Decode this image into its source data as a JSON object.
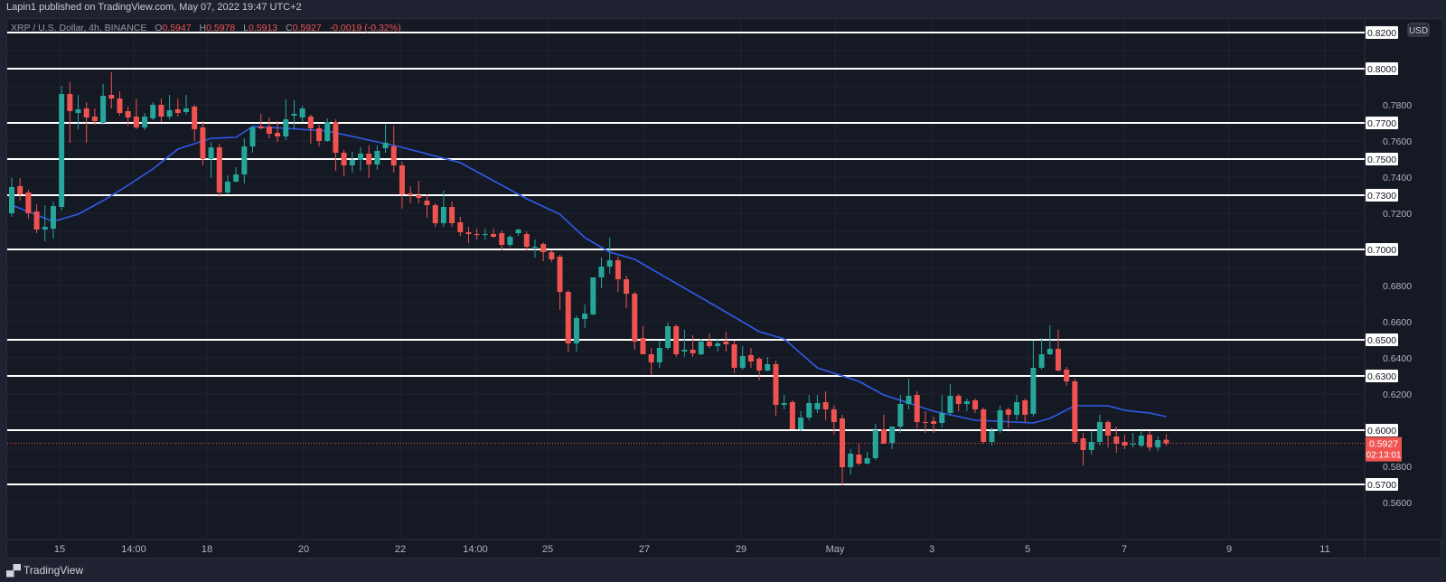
{
  "publisher_line": "Lapin1 published on TradingView.com, May 07, 2022 19:47 UTC+2",
  "legend": {
    "symbol": "XRP / U.S. Dollar, 4h, BINANCE",
    "open_label": "O",
    "open": "0.5947",
    "high_label": "H",
    "high": "0.5978",
    "low_label": "L",
    "low": "0.5913",
    "close_label": "C",
    "close": "0.5927",
    "change": "-0.0019 (-0.32%)"
  },
  "currency_badge": "USD",
  "footer_logo": "TradingView",
  "colors": {
    "up": "#26a69a",
    "down": "#ef5350",
    "ma": "#2f5bea",
    "level_line": "#ffffff",
    "last_price": "#f05350"
  },
  "chart_data": {
    "type": "candlestick",
    "timeframe": "4h",
    "ylim": [
      0.549,
      0.828
    ],
    "x_tick_labels": [
      "15",
      "14:00",
      "18",
      "20",
      "22",
      "14:00",
      "25",
      "27",
      "29",
      "May",
      "3",
      "5",
      "7",
      "9",
      "11"
    ],
    "y_tick_labels": [
      "0.7800",
      "0.7600",
      "0.7400",
      "0.7200",
      "0.6800",
      "0.6600",
      "0.6400",
      "0.6200",
      "0.5800",
      "0.5600"
    ],
    "horizontal_levels": [
      "0.8200",
      "0.8000",
      "0.7700",
      "0.7500",
      "0.7300",
      "0.7000",
      "0.6500",
      "0.6300",
      "0.6000",
      "0.5700"
    ],
    "last_price": {
      "value": "0.5927",
      "countdown": "02:13:01"
    },
    "candles_ohlc": [
      [
        0.72,
        0.7395,
        0.718,
        0.7345
      ],
      [
        0.735,
        0.7395,
        0.727,
        0.7305
      ],
      [
        0.7315,
        0.733,
        0.717,
        0.72
      ],
      [
        0.721,
        0.725,
        0.709,
        0.711
      ],
      [
        0.711,
        0.7245,
        0.7045,
        0.7125
      ],
      [
        0.7115,
        0.7265,
        0.706,
        0.724
      ],
      [
        0.7235,
        0.7905,
        0.7215,
        0.786
      ],
      [
        0.786,
        0.7925,
        0.759,
        0.7765
      ],
      [
        0.7755,
        0.7855,
        0.7665,
        0.7775
      ],
      [
        0.778,
        0.7815,
        0.759,
        0.773
      ],
      [
        0.7735,
        0.778,
        0.769,
        0.771
      ],
      [
        0.77,
        0.7915,
        0.769,
        0.785
      ],
      [
        0.7855,
        0.798,
        0.778,
        0.7835
      ],
      [
        0.7835,
        0.7875,
        0.774,
        0.7755
      ],
      [
        0.7765,
        0.779,
        0.7685,
        0.773
      ],
      [
        0.7735,
        0.7835,
        0.7665,
        0.7675
      ],
      [
        0.7675,
        0.7755,
        0.766,
        0.7735
      ],
      [
        0.7725,
        0.7815,
        0.7715,
        0.78
      ],
      [
        0.78,
        0.7835,
        0.7705,
        0.7735
      ],
      [
        0.7735,
        0.7855,
        0.772,
        0.777
      ],
      [
        0.7775,
        0.7835,
        0.7735,
        0.7755
      ],
      [
        0.776,
        0.7855,
        0.7745,
        0.778
      ],
      [
        0.779,
        0.78,
        0.76,
        0.7665
      ],
      [
        0.7675,
        0.771,
        0.7465,
        0.75
      ],
      [
        0.75,
        0.7595,
        0.7395,
        0.7565
      ],
      [
        0.7565,
        0.7585,
        0.729,
        0.7315
      ],
      [
        0.7315,
        0.741,
        0.7305,
        0.7375
      ],
      [
        0.7375,
        0.7455,
        0.737,
        0.7415
      ],
      [
        0.7415,
        0.7615,
        0.7365,
        0.757
      ],
      [
        0.757,
        0.7685,
        0.7535,
        0.7675
      ],
      [
        0.768,
        0.775,
        0.7665,
        0.767
      ],
      [
        0.768,
        0.773,
        0.7615,
        0.764
      ],
      [
        0.7645,
        0.771,
        0.7595,
        0.7625
      ],
      [
        0.7625,
        0.783,
        0.7605,
        0.772
      ],
      [
        0.774,
        0.7825,
        0.7665,
        0.775
      ],
      [
        0.773,
        0.7795,
        0.7705,
        0.778
      ],
      [
        0.7735,
        0.7745,
        0.7585,
        0.767
      ],
      [
        0.767,
        0.769,
        0.757,
        0.76
      ],
      [
        0.76,
        0.7725,
        0.7595,
        0.7705
      ],
      [
        0.7705,
        0.772,
        0.7435,
        0.7535
      ],
      [
        0.7535,
        0.755,
        0.7405,
        0.7465
      ],
      [
        0.7465,
        0.754,
        0.7425,
        0.7495
      ],
      [
        0.7495,
        0.7565,
        0.7435,
        0.753
      ],
      [
        0.753,
        0.7575,
        0.7395,
        0.747
      ],
      [
        0.747,
        0.7575,
        0.744,
        0.7545
      ],
      [
        0.756,
        0.769,
        0.7535,
        0.759
      ],
      [
        0.757,
        0.7685,
        0.7425,
        0.7465
      ],
      [
        0.7465,
        0.7485,
        0.7225,
        0.7305
      ],
      [
        0.731,
        0.735,
        0.7255,
        0.73
      ],
      [
        0.73,
        0.738,
        0.7255,
        0.7285
      ],
      [
        0.727,
        0.7305,
        0.7175,
        0.7245
      ],
      [
        0.7245,
        0.7255,
        0.7125,
        0.7145
      ],
      [
        0.7145,
        0.7325,
        0.7125,
        0.7235
      ],
      [
        0.7235,
        0.7265,
        0.7125,
        0.7145
      ],
      [
        0.715,
        0.718,
        0.7075,
        0.7095
      ],
      [
        0.7095,
        0.7125,
        0.7035,
        0.7085
      ],
      [
        0.7085,
        0.7115,
        0.7055,
        0.708
      ],
      [
        0.708,
        0.7115,
        0.7055,
        0.7085
      ],
      [
        0.7085,
        0.7115,
        0.7065,
        0.707
      ],
      [
        0.709,
        0.7105,
        0.6995,
        0.7025
      ],
      [
        0.7025,
        0.708,
        0.7015,
        0.707
      ],
      [
        0.709,
        0.7115,
        0.7075,
        0.711
      ],
      [
        0.7085,
        0.71,
        0.6995,
        0.7015
      ],
      [
        0.7015,
        0.7055,
        0.6955,
        0.7015
      ],
      [
        0.703,
        0.704,
        0.6935,
        0.6985
      ],
      [
        0.6985,
        0.6995,
        0.693,
        0.6945
      ],
      [
        0.696,
        0.697,
        0.6665,
        0.6765
      ],
      [
        0.6765,
        0.6775,
        0.6435,
        0.648
      ],
      [
        0.648,
        0.6635,
        0.6435,
        0.662
      ],
      [
        0.6615,
        0.6695,
        0.6565,
        0.6645
      ],
      [
        0.664,
        0.6845,
        0.6635,
        0.6845
      ],
      [
        0.6845,
        0.6955,
        0.6785,
        0.6905
      ],
      [
        0.6905,
        0.7065,
        0.6865,
        0.694
      ],
      [
        0.694,
        0.696,
        0.6765,
        0.6835
      ],
      [
        0.6835,
        0.6855,
        0.6675,
        0.6755
      ],
      [
        0.6755,
        0.6765,
        0.6445,
        0.649
      ],
      [
        0.651,
        0.6575,
        0.6425,
        0.642
      ],
      [
        0.642,
        0.6455,
        0.6305,
        0.6375
      ],
      [
        0.6375,
        0.6495,
        0.6345,
        0.6455
      ],
      [
        0.6455,
        0.6595,
        0.6445,
        0.6575
      ],
      [
        0.6575,
        0.6585,
        0.6405,
        0.642
      ],
      [
        0.6435,
        0.6555,
        0.6405,
        0.6445
      ],
      [
        0.6445,
        0.6525,
        0.6405,
        0.6425
      ],
      [
        0.642,
        0.6505,
        0.6415,
        0.649
      ],
      [
        0.649,
        0.6535,
        0.6455,
        0.6465
      ],
      [
        0.6465,
        0.6505,
        0.6435,
        0.648
      ],
      [
        0.649,
        0.6545,
        0.6435,
        0.6475
      ],
      [
        0.6475,
        0.6495,
        0.6315,
        0.6345
      ],
      [
        0.6345,
        0.6465,
        0.6335,
        0.641
      ],
      [
        0.6415,
        0.6455,
        0.6345,
        0.638
      ],
      [
        0.6395,
        0.6405,
        0.6275,
        0.633
      ],
      [
        0.633,
        0.6405,
        0.6325,
        0.6365
      ],
      [
        0.6365,
        0.6385,
        0.608,
        0.614
      ],
      [
        0.614,
        0.6195,
        0.6115,
        0.615
      ],
      [
        0.6155,
        0.6165,
        0.6005,
        0.6005
      ],
      [
        0.6005,
        0.6105,
        0.5995,
        0.607
      ],
      [
        0.607,
        0.6195,
        0.6055,
        0.615
      ],
      [
        0.6115,
        0.6195,
        0.6095,
        0.615
      ],
      [
        0.6155,
        0.6215,
        0.6055,
        0.6115
      ],
      [
        0.6115,
        0.6135,
        0.5975,
        0.6045
      ],
      [
        0.6065,
        0.6085,
        0.5695,
        0.5795
      ],
      [
        0.5795,
        0.5895,
        0.5755,
        0.587
      ],
      [
        0.5865,
        0.5925,
        0.5805,
        0.5815
      ],
      [
        0.5815,
        0.588,
        0.581,
        0.5845
      ],
      [
        0.5845,
        0.6035,
        0.5835,
        0.6
      ],
      [
        0.6005,
        0.6085,
        0.5925,
        0.5925
      ],
      [
        0.593,
        0.602,
        0.5895,
        0.602
      ],
      [
        0.602,
        0.6195,
        0.5985,
        0.6145
      ],
      [
        0.6145,
        0.6285,
        0.6115,
        0.619
      ],
      [
        0.6195,
        0.6215,
        0.601,
        0.6045
      ],
      [
        0.6045,
        0.6105,
        0.5985,
        0.604
      ],
      [
        0.605,
        0.6075,
        0.5985,
        0.6035
      ],
      [
        0.604,
        0.6195,
        0.6015,
        0.6095
      ],
      [
        0.6095,
        0.6255,
        0.6085,
        0.619
      ],
      [
        0.619,
        0.62,
        0.6105,
        0.6145
      ],
      [
        0.6145,
        0.6175,
        0.6105,
        0.616
      ],
      [
        0.6165,
        0.6175,
        0.6095,
        0.6115
      ],
      [
        0.6115,
        0.6125,
        0.5925,
        0.5935
      ],
      [
        0.5935,
        0.6015,
        0.5915,
        0.5995
      ],
      [
        0.5995,
        0.6135,
        0.5985,
        0.611
      ],
      [
        0.6115,
        0.6125,
        0.6015,
        0.6085
      ],
      [
        0.6085,
        0.6195,
        0.6055,
        0.6155
      ],
      [
        0.6165,
        0.6175,
        0.6045,
        0.6085
      ],
      [
        0.609,
        0.6495,
        0.6075,
        0.6345
      ],
      [
        0.6345,
        0.651,
        0.6335,
        0.642
      ],
      [
        0.642,
        0.658,
        0.6415,
        0.645
      ],
      [
        0.645,
        0.6555,
        0.6325,
        0.633
      ],
      [
        0.6335,
        0.635,
        0.6245,
        0.627
      ],
      [
        0.627,
        0.6285,
        0.5925,
        0.5935
      ],
      [
        0.5955,
        0.5985,
        0.5805,
        0.589
      ],
      [
        0.589,
        0.5995,
        0.5865,
        0.5935
      ],
      [
        0.5935,
        0.6085,
        0.5915,
        0.6045
      ],
      [
        0.6045,
        0.6055,
        0.5905,
        0.597
      ],
      [
        0.5965,
        0.602,
        0.5875,
        0.5925
      ],
      [
        0.5935,
        0.5975,
        0.5895,
        0.5915
      ],
      [
        0.5925,
        0.5985,
        0.5905,
        0.5925
      ],
      [
        0.5915,
        0.6,
        0.5905,
        0.597
      ],
      [
        0.5975,
        0.5995,
        0.5885,
        0.5905
      ],
      [
        0.5905,
        0.5965,
        0.5885,
        0.5945
      ],
      [
        0.5947,
        0.5978,
        0.5913,
        0.5927
      ]
    ],
    "moving_average_points": [
      [
        0,
        0.7245
      ],
      [
        5,
        0.7155
      ],
      [
        8,
        0.7195
      ],
      [
        11,
        0.727
      ],
      [
        14,
        0.7355
      ],
      [
        17,
        0.7445
      ],
      [
        20,
        0.7555
      ],
      [
        24,
        0.7615
      ],
      [
        27,
        0.762
      ],
      [
        29,
        0.768
      ],
      [
        33,
        0.767
      ],
      [
        38,
        0.7655
      ],
      [
        43,
        0.7605
      ],
      [
        47,
        0.7565
      ],
      [
        54,
        0.748
      ],
      [
        62,
        0.728
      ],
      [
        66,
        0.7195
      ],
      [
        69,
        0.7065
      ],
      [
        72,
        0.6985
      ],
      [
        75,
        0.6945
      ],
      [
        85,
        0.668
      ],
      [
        90,
        0.6545
      ],
      [
        93,
        0.6505
      ],
      [
        97,
        0.6345
      ],
      [
        102,
        0.627
      ],
      [
        105,
        0.6195
      ],
      [
        111,
        0.6105
      ],
      [
        116,
        0.6055
      ],
      [
        123,
        0.604
      ],
      [
        125,
        0.6065
      ],
      [
        128,
        0.6135
      ],
      [
        132,
        0.6135
      ],
      [
        134,
        0.611
      ],
      [
        137,
        0.6095
      ],
      [
        139,
        0.6075
      ]
    ]
  }
}
